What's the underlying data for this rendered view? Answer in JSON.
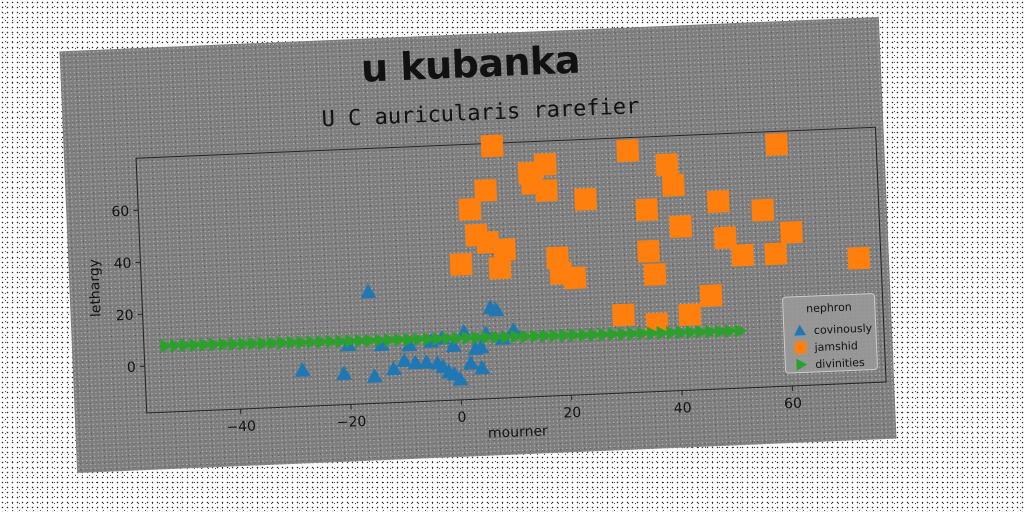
{
  "chart_data": {
    "type": "scatter",
    "suptitle": "u kubanka",
    "title": "U C auricularis rarefier",
    "xlabel": "mourner",
    "ylabel": "lethargy",
    "xlim": [
      -57,
      77
    ],
    "ylim": [
      -18,
      80
    ],
    "xticks": [
      -40,
      -20,
      0,
      20,
      40,
      60
    ],
    "yticks": [
      0,
      20,
      40,
      60
    ],
    "grid": false,
    "legend": {
      "title": "nephron",
      "position": "lower-right"
    },
    "series": [
      {
        "name": "covinously",
        "marker": "triangle-up",
        "color": "#1f77b4",
        "points": [
          [
            -28.5,
            -4
          ],
          [
            -21,
            -6
          ],
          [
            -16,
            25
          ],
          [
            -15.5,
            -7.5
          ],
          [
            -14,
            4.5
          ],
          [
            -12,
            -5
          ],
          [
            -10,
            -2
          ],
          [
            -8,
            -3
          ],
          [
            -6,
            -3
          ],
          [
            -5,
            5
          ],
          [
            -4,
            -3.5
          ],
          [
            -3,
            -5
          ],
          [
            -2,
            -7
          ],
          [
            -1,
            -8
          ],
          [
            0,
            -10
          ],
          [
            -1,
            3
          ],
          [
            1,
            8
          ],
          [
            2,
            -4
          ],
          [
            3,
            1.5
          ],
          [
            4,
            2
          ],
          [
            5,
            7
          ],
          [
            6,
            17
          ],
          [
            7,
            16
          ],
          [
            10,
            8
          ],
          [
            -20,
            5
          ],
          [
            -9,
            4
          ],
          [
            -3,
            6
          ],
          [
            4,
            -6
          ],
          [
            8,
            5
          ]
        ]
      },
      {
        "name": "jamshid",
        "marker": "square",
        "color": "#ff7f0e",
        "points": [
          [
            7.5,
            79
          ],
          [
            14,
            68
          ],
          [
            14.5,
            64
          ],
          [
            17,
            61
          ],
          [
            17,
            71
          ],
          [
            18.5,
            35
          ],
          [
            19,
            29
          ],
          [
            21.5,
            27
          ],
          [
            24,
            57
          ],
          [
            30,
            12
          ],
          [
            32,
            75
          ],
          [
            3,
            55
          ],
          [
            6,
            62
          ],
          [
            1,
            34
          ],
          [
            4,
            45
          ],
          [
            6,
            42
          ],
          [
            8,
            32
          ],
          [
            9,
            39
          ],
          [
            35,
            52
          ],
          [
            35,
            36
          ],
          [
            36,
            27
          ],
          [
            36,
            8
          ],
          [
            39,
            69
          ],
          [
            40,
            61
          ],
          [
            41,
            45
          ],
          [
            42,
            11
          ],
          [
            46,
            18
          ],
          [
            48,
            54
          ],
          [
            49,
            40
          ],
          [
            52,
            33
          ],
          [
            56,
            50
          ],
          [
            58,
            33
          ],
          [
            59,
            75
          ],
          [
            61,
            41
          ],
          [
            73,
            30
          ]
        ]
      },
      {
        "name": "divinities",
        "marker": "triangle-right",
        "color": "#2ca02c",
        "line": {
          "x_start": -53,
          "x_end": 51,
          "y_start": 7.5,
          "y_end": 4,
          "count": 60
        }
      }
    ]
  }
}
